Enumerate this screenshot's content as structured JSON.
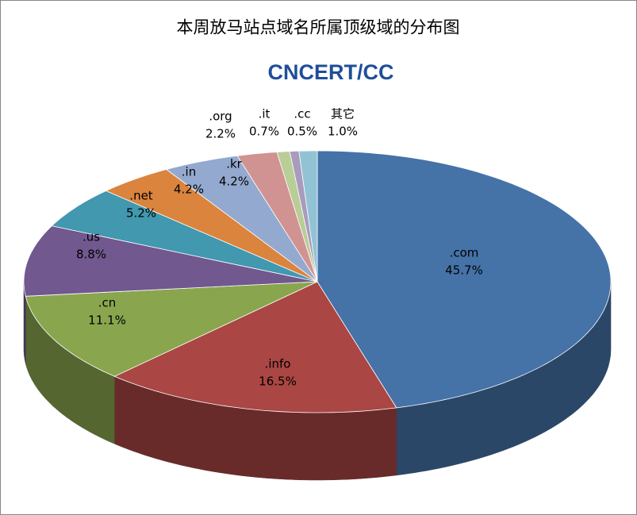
{
  "chart_data": {
    "type": "pie3d",
    "title": "本周放马站点域名所属顶级域的分布图",
    "logo": "CNCERT/CC",
    "categories": [
      ".com",
      ".info",
      ".cn",
      ".us",
      ".net",
      ".in",
      ".kr",
      ".org",
      ".it",
      ".cc",
      "其它"
    ],
    "values": [
      45.7,
      16.5,
      11.1,
      8.8,
      5.2,
      4.2,
      4.2,
      2.2,
      0.7,
      0.5,
      1.0
    ],
    "value_labels": [
      "45.7%",
      "16.5%",
      "11.1%",
      "8.8%",
      "5.2%",
      "4.2%",
      "4.2%",
      "2.2%",
      "0.7%",
      "0.5%",
      "1.0%"
    ],
    "colors": [
      "#4572a7",
      "#aa4643",
      "#89a54e",
      "#71588f",
      "#4198af",
      "#db843d",
      "#93a9cf",
      "#d19392",
      "#b9cd96",
      "#a99bbd",
      "#92c3d4"
    ]
  }
}
